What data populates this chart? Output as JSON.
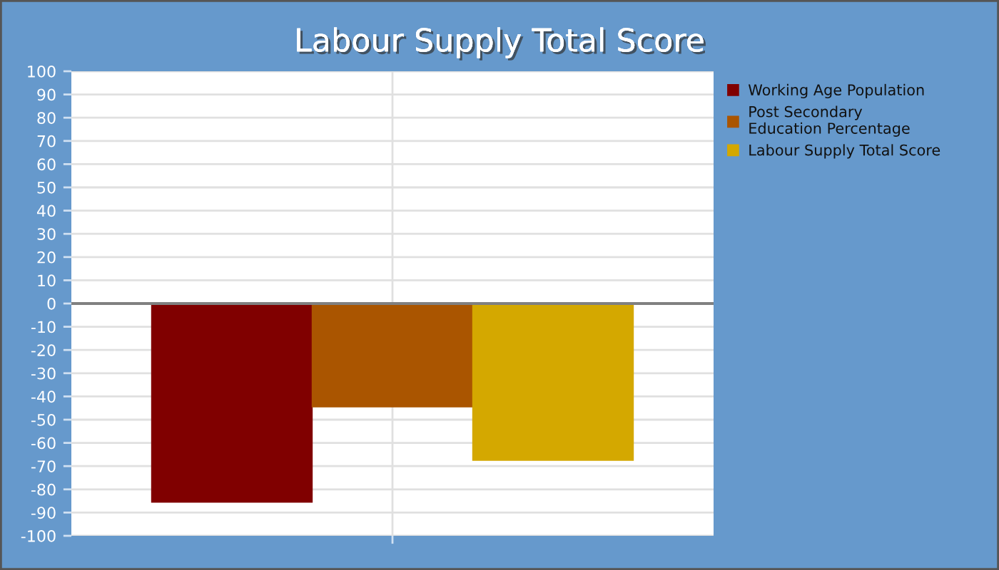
{
  "chart_data": {
    "type": "bar",
    "title": "Labour Supply Total Score",
    "categories": [
      null
    ],
    "series": [
      {
        "name": "Working Age Population",
        "color": "#800000",
        "values": [
          -85.5
        ]
      },
      {
        "name": "Post Secondary\nEducation Percentage",
        "color": "#aa5500",
        "values": [
          -44.5
        ]
      },
      {
        "name": "Labour Supply Total Score",
        "color": "#d4a800",
        "values": [
          -67.5
        ]
      }
    ],
    "ylim": [
      -100,
      100
    ],
    "yticks": [
      -100,
      -90,
      -80,
      -70,
      -60,
      -50,
      -40,
      -30,
      -20,
      -10,
      0,
      10,
      20,
      30,
      40,
      50,
      60,
      70,
      80,
      90,
      100
    ],
    "ref_lines": [
      {
        "axis": "y",
        "value": 0,
        "color": "#808080"
      }
    ],
    "grid": true,
    "legend": "top right"
  }
}
